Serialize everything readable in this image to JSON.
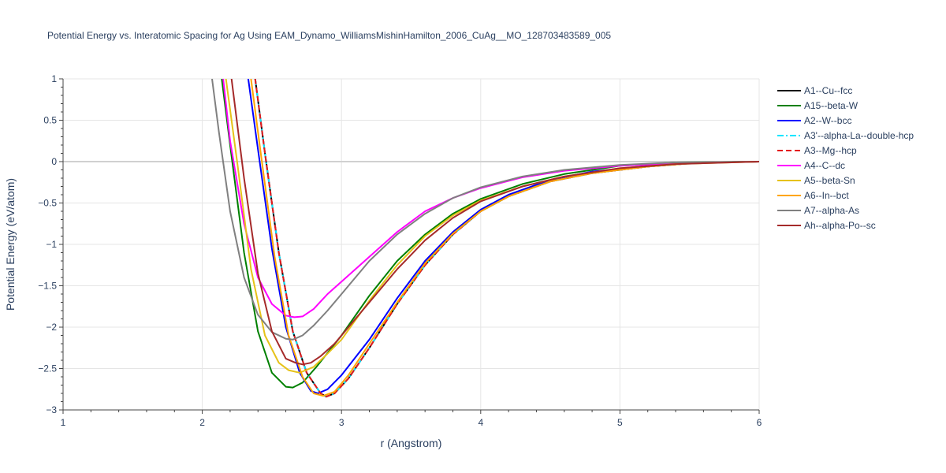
{
  "chart_data": {
    "type": "line",
    "title": "Potential Energy vs. Interatomic Spacing for Ag Using EAM_Dynamo_WilliamsMishinHamilton_2006_CuAg__MO_128703483589_005",
    "xlabel": "r (Angstrom)",
    "ylabel": "Potential Energy (eV/atom)",
    "xlim": [
      1,
      6
    ],
    "ylim": [
      -3,
      1
    ],
    "x_ticks": [
      "1",
      "2",
      "3",
      "4",
      "5",
      "6"
    ],
    "y_ticks": [
      "1",
      "0.5",
      "0",
      "−0.5",
      "−1",
      "−1.5",
      "−2",
      "−2.5",
      "−3"
    ],
    "grid": true,
    "legend_position": "right",
    "series": [
      {
        "name": "A1--Cu--fcc",
        "color": "#000000",
        "dash": "solid",
        "x": [
          2.38,
          2.45,
          2.55,
          2.65,
          2.75,
          2.85,
          2.89,
          2.95,
          3.05,
          3.2,
          3.4,
          3.6,
          3.8,
          4.0,
          4.2,
          4.5,
          4.8,
          5.2,
          5.6,
          6.0
        ],
        "y": [
          1.0,
          0.1,
          -1.1,
          -2.05,
          -2.55,
          -2.8,
          -2.84,
          -2.8,
          -2.62,
          -2.25,
          -1.72,
          -1.25,
          -0.88,
          -0.6,
          -0.42,
          -0.24,
          -0.14,
          -0.06,
          -0.01,
          0.0
        ]
      },
      {
        "name": "A15--beta-W",
        "color": "#008000",
        "dash": "solid",
        "x": [
          2.14,
          2.2,
          2.3,
          2.4,
          2.5,
          2.6,
          2.65,
          2.72,
          2.82,
          3.0,
          3.2,
          3.4,
          3.6,
          3.8,
          4.0,
          4.3,
          4.6,
          5.0,
          5.4,
          6.0
        ],
        "y": [
          1.0,
          0.2,
          -1.1,
          -2.05,
          -2.55,
          -2.72,
          -2.73,
          -2.67,
          -2.48,
          -2.1,
          -1.62,
          -1.2,
          -0.88,
          -0.63,
          -0.45,
          -0.27,
          -0.15,
          -0.05,
          -0.01,
          0.0
        ]
      },
      {
        "name": "A2--W--bcc",
        "color": "#0000ff",
        "dash": "solid",
        "x": [
          2.33,
          2.4,
          2.5,
          2.6,
          2.7,
          2.78,
          2.83,
          2.9,
          3.0,
          3.2,
          3.4,
          3.6,
          3.8,
          4.0,
          4.2,
          4.5,
          4.8,
          5.2,
          5.6,
          6.0
        ],
        "y": [
          1.0,
          0.15,
          -1.05,
          -2.0,
          -2.55,
          -2.77,
          -2.8,
          -2.75,
          -2.58,
          -2.15,
          -1.65,
          -1.2,
          -0.85,
          -0.58,
          -0.4,
          -0.22,
          -0.12,
          -0.05,
          -0.01,
          0.0
        ]
      },
      {
        "name": "A3'--alpha-La--double-hcp",
        "color": "#00e5ff",
        "dash": "dashdot",
        "x": [
          2.38,
          2.45,
          2.55,
          2.65,
          2.75,
          2.85,
          2.89,
          2.95,
          3.05,
          3.2,
          3.4,
          3.6,
          3.8,
          4.0,
          4.2,
          4.5,
          4.8,
          5.2,
          5.6,
          6.0
        ],
        "y": [
          1.0,
          0.1,
          -1.1,
          -2.05,
          -2.55,
          -2.8,
          -2.84,
          -2.8,
          -2.62,
          -2.25,
          -1.72,
          -1.25,
          -0.88,
          -0.6,
          -0.42,
          -0.24,
          -0.14,
          -0.06,
          -0.01,
          0.0
        ]
      },
      {
        "name": "A3--Mg--hcp",
        "color": "#e41a1c",
        "dash": "dash",
        "x": [
          2.38,
          2.45,
          2.55,
          2.65,
          2.75,
          2.85,
          2.89,
          2.95,
          3.05,
          3.2,
          3.4,
          3.6,
          3.8,
          4.0,
          4.2,
          4.5,
          4.8,
          5.2,
          5.6,
          6.0
        ],
        "y": [
          1.0,
          0.1,
          -1.1,
          -2.05,
          -2.55,
          -2.8,
          -2.84,
          -2.8,
          -2.62,
          -2.25,
          -1.72,
          -1.25,
          -0.88,
          -0.6,
          -0.42,
          -0.24,
          -0.14,
          -0.06,
          -0.01,
          0.0
        ]
      },
      {
        "name": "A4--C--dc",
        "color": "#ff00ff",
        "dash": "solid",
        "x": [
          2.15,
          2.2,
          2.3,
          2.4,
          2.5,
          2.6,
          2.66,
          2.72,
          2.8,
          2.9,
          3.0,
          3.2,
          3.4,
          3.6,
          3.8,
          4.0,
          4.3,
          4.6,
          5.0,
          5.4,
          6.0
        ],
        "y": [
          1.0,
          0.25,
          -0.75,
          -1.4,
          -1.72,
          -1.86,
          -1.88,
          -1.87,
          -1.78,
          -1.6,
          -1.45,
          -1.15,
          -0.85,
          -0.6,
          -0.44,
          -0.32,
          -0.19,
          -0.11,
          -0.05,
          -0.02,
          0.0
        ]
      },
      {
        "name": "A5--beta-Sn",
        "color": "#e6c219",
        "dash": "solid",
        "x": [
          2.17,
          2.25,
          2.35,
          2.45,
          2.55,
          2.62,
          2.7,
          2.8,
          2.9,
          3.0,
          3.2,
          3.4,
          3.6,
          3.8,
          4.0,
          4.3,
          4.6,
          5.0,
          5.4,
          6.0
        ],
        "y": [
          1.0,
          0.0,
          -1.3,
          -2.1,
          -2.43,
          -2.52,
          -2.55,
          -2.48,
          -2.32,
          -2.15,
          -1.68,
          -1.25,
          -0.9,
          -0.65,
          -0.47,
          -0.3,
          -0.18,
          -0.08,
          -0.03,
          0.0
        ]
      },
      {
        "name": "A6--In--bct",
        "color": "#ffa500",
        "dash": "solid",
        "x": [
          2.35,
          2.42,
          2.52,
          2.62,
          2.72,
          2.8,
          2.87,
          2.95,
          3.05,
          3.2,
          3.4,
          3.6,
          3.8,
          4.0,
          4.2,
          4.5,
          4.8,
          5.2,
          5.6,
          6.0
        ],
        "y": [
          1.0,
          0.1,
          -1.15,
          -2.1,
          -2.6,
          -2.8,
          -2.83,
          -2.78,
          -2.58,
          -2.2,
          -1.7,
          -1.23,
          -0.87,
          -0.6,
          -0.42,
          -0.24,
          -0.14,
          -0.06,
          -0.01,
          0.0
        ]
      },
      {
        "name": "A7--alpha-As",
        "color": "#808080",
        "dash": "solid",
        "x": [
          2.07,
          2.12,
          2.2,
          2.3,
          2.4,
          2.5,
          2.6,
          2.65,
          2.72,
          2.8,
          2.9,
          3.0,
          3.2,
          3.4,
          3.6,
          3.8,
          4.0,
          4.3,
          4.6,
          5.0,
          5.4,
          6.0
        ],
        "y": [
          1.0,
          0.35,
          -0.6,
          -1.4,
          -1.85,
          -2.06,
          -2.14,
          -2.15,
          -2.1,
          -1.98,
          -1.8,
          -1.6,
          -1.2,
          -0.88,
          -0.63,
          -0.44,
          -0.31,
          -0.18,
          -0.1,
          -0.04,
          -0.01,
          0.0
        ]
      },
      {
        "name": "Ah--alpha-Po--sc",
        "color": "#a52a2a",
        "dash": "solid",
        "x": [
          2.21,
          2.3,
          2.4,
          2.5,
          2.6,
          2.67,
          2.72,
          2.78,
          2.85,
          2.95,
          3.05,
          3.2,
          3.4,
          3.6,
          3.8,
          4.0,
          4.3,
          4.6,
          5.0,
          5.4,
          6.0
        ],
        "y": [
          1.0,
          -0.2,
          -1.35,
          -2.05,
          -2.38,
          -2.43,
          -2.45,
          -2.43,
          -2.35,
          -2.2,
          -2.0,
          -1.7,
          -1.3,
          -0.95,
          -0.68,
          -0.48,
          -0.3,
          -0.18,
          -0.08,
          -0.03,
          0.0
        ]
      }
    ]
  }
}
